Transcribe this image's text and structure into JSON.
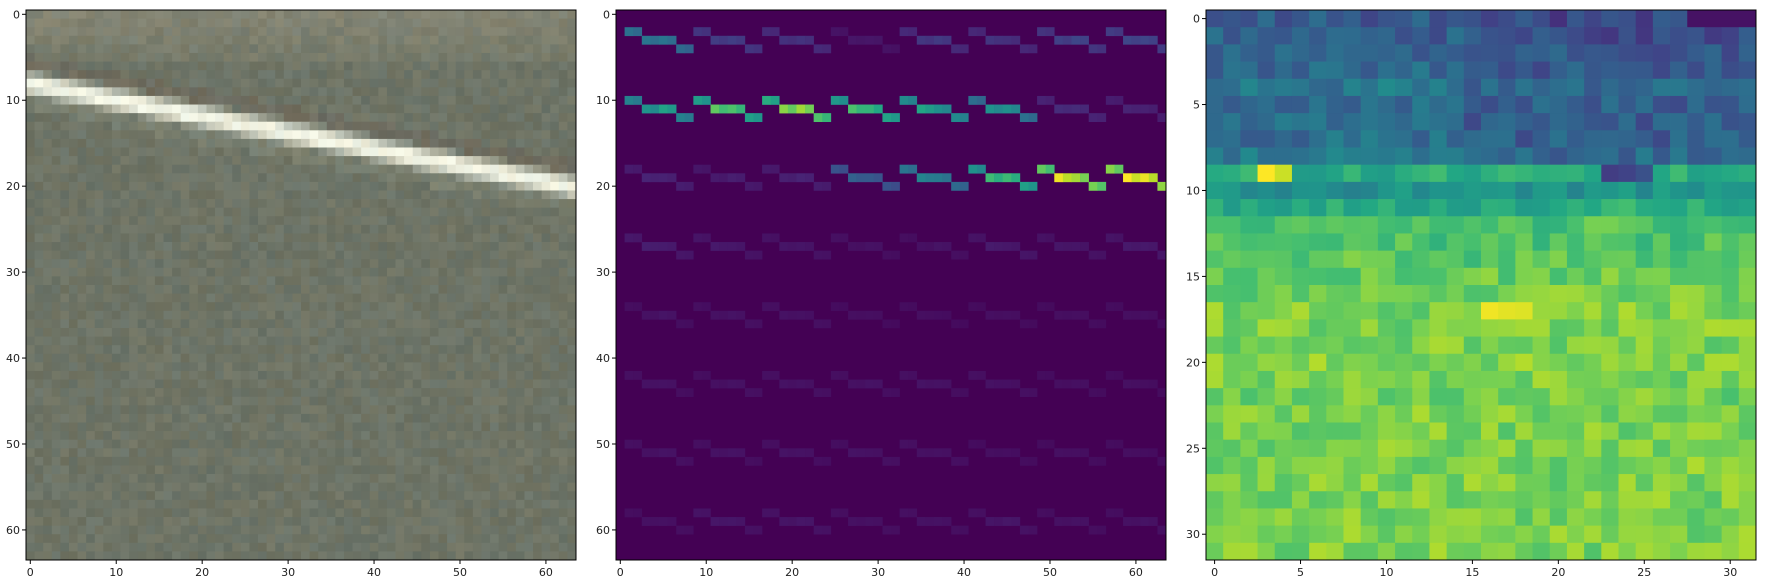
{
  "figure": {
    "background": "#ffffff"
  },
  "chart_data": [
    {
      "type": "heatmap",
      "name": "rgb-image-patch",
      "grid_size": [
        64,
        64
      ],
      "xlim": [
        -0.5,
        63.5
      ],
      "ylim": [
        63.5,
        -0.5
      ],
      "xticks": [
        0,
        10,
        20,
        30,
        40,
        50,
        60
      ],
      "yticks": [
        0,
        10,
        20,
        30,
        40,
        50,
        60
      ],
      "background_color": "#6e7466",
      "stripe": {
        "description": "bright diagonal line",
        "start": [
          0,
          8
        ],
        "end": [
          63,
          20
        ],
        "color": "#f2f4e4",
        "halo_color": "#a7ab92"
      },
      "top_band": {
        "rows": [
          0,
          5
        ],
        "color": "#8c8b78"
      }
    },
    {
      "type": "heatmap",
      "name": "feature-grid-8x8",
      "grid_size": [
        64,
        64
      ],
      "xlim": [
        -0.5,
        63.5
      ],
      "ylim": [
        63.5,
        -0.5
      ],
      "xticks": [
        0,
        10,
        20,
        30,
        40,
        50,
        60
      ],
      "yticks": [
        0,
        10,
        20,
        30,
        40,
        50,
        60
      ],
      "colormap": "viridis",
      "block_size": 8,
      "block_activation": [
        [
          0.42,
          0.18,
          0.14,
          0.06,
          0.16,
          0.15,
          0.2,
          0.22
        ],
        [
          0.55,
          0.72,
          0.8,
          0.72,
          0.55,
          0.48,
          0.12,
          0.1
        ],
        [
          0.1,
          0.08,
          0.1,
          0.3,
          0.45,
          0.68,
          0.9,
          0.95
        ],
        [
          0.08,
          0.07,
          0.06,
          0.05,
          0.05,
          0.07,
          0.06,
          0.07
        ],
        [
          0.05,
          0.05,
          0.05,
          0.04,
          0.04,
          0.04,
          0.04,
          0.04
        ],
        [
          0.05,
          0.05,
          0.05,
          0.05,
          0.05,
          0.05,
          0.04,
          0.04
        ],
        [
          0.05,
          0.05,
          0.05,
          0.05,
          0.05,
          0.04,
          0.04,
          0.04
        ],
        [
          0.05,
          0.06,
          0.06,
          0.05,
          0.05,
          0.06,
          0.05,
          0.05
        ]
      ]
    },
    {
      "type": "heatmap",
      "name": "feature-map-32x32",
      "grid_size": [
        32,
        32
      ],
      "xlim": [
        -0.5,
        31.5
      ],
      "ylim": [
        31.5,
        -0.5
      ],
      "xticks": [
        0,
        5,
        10,
        15,
        20,
        25,
        30
      ],
      "yticks": [
        0,
        5,
        10,
        15,
        20,
        25,
        30
      ],
      "colormap": "viridis",
      "row_profile": [
        0.28,
        0.3,
        0.33,
        0.34,
        0.4,
        0.36,
        0.35,
        0.36,
        0.4,
        0.62,
        0.5,
        0.62,
        0.72,
        0.72,
        0.74,
        0.76,
        0.78,
        0.8,
        0.8,
        0.8,
        0.82,
        0.8,
        0.78,
        0.8,
        0.8,
        0.8,
        0.8,
        0.8,
        0.8,
        0.8,
        0.8,
        0.8
      ],
      "highlights": [
        {
          "row": 9,
          "col": 3,
          "value": 1.0
        },
        {
          "row": 9,
          "col": 4,
          "value": 0.92
        },
        {
          "row": 17,
          "col": 16,
          "value": 0.98
        },
        {
          "row": 17,
          "col": 17,
          "value": 0.96
        },
        {
          "row": 17,
          "col": 18,
          "value": 0.95
        },
        {
          "row": 9,
          "col": 23,
          "value": 0.18
        },
        {
          "row": 9,
          "col": 24,
          "value": 0.2
        },
        {
          "row": 9,
          "col": 25,
          "value": 0.25
        },
        {
          "row": 0,
          "col": 28,
          "value": 0.05
        },
        {
          "row": 0,
          "col": 29,
          "value": 0.05
        },
        {
          "row": 0,
          "col": 30,
          "value": 0.05
        },
        {
          "row": 0,
          "col": 31,
          "value": 0.05
        }
      ]
    }
  ]
}
